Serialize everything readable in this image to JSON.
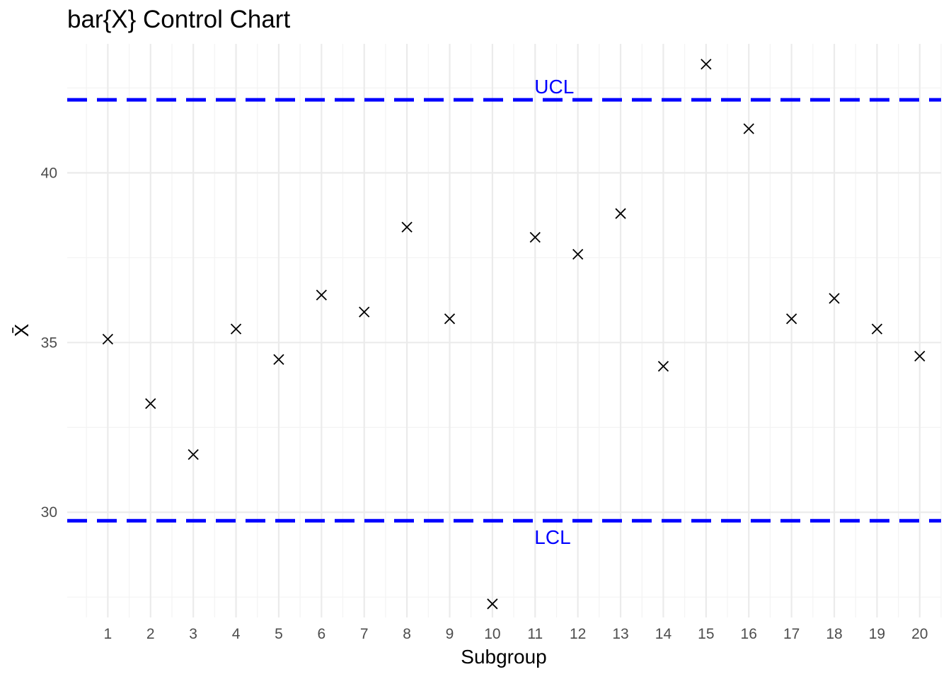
{
  "chart_data": {
    "type": "scatter",
    "title": "bar{X} Control Chart",
    "xlabel": "Subgroup",
    "ylabel": "X̄",
    "x": [
      1,
      2,
      3,
      4,
      5,
      6,
      7,
      8,
      9,
      10,
      11,
      12,
      13,
      14,
      15,
      16,
      17,
      18,
      19,
      20
    ],
    "x_tick_labels": [
      "1",
      "2",
      "3",
      "4",
      "5",
      "6",
      "7",
      "8",
      "9",
      "10",
      "11",
      "12",
      "13",
      "14",
      "15",
      "16",
      "17",
      "18",
      "19",
      "20"
    ],
    "y": [
      35.1,
      33.2,
      31.7,
      35.4,
      34.5,
      36.4,
      35.9,
      38.4,
      35.7,
      27.3,
      38.1,
      37.6,
      38.8,
      34.3,
      43.2,
      41.3,
      35.7,
      36.3,
      35.4,
      34.6
    ],
    "y_ticks": [
      30,
      35,
      40
    ],
    "y_tick_labels": [
      "30",
      "35",
      "40"
    ],
    "xlim": [
      0.05,
      20.5
    ],
    "ylim": [
      26.9,
      43.8
    ],
    "marker": "x",
    "grid": true,
    "legend": "none",
    "control_limits": [
      {
        "label": "UCL",
        "value": 42.15
      },
      {
        "label": "LCL",
        "value": 29.75
      }
    ],
    "colors": {
      "limit": "#0000ff",
      "points": "#000000",
      "grid": "#ebebeb"
    }
  }
}
